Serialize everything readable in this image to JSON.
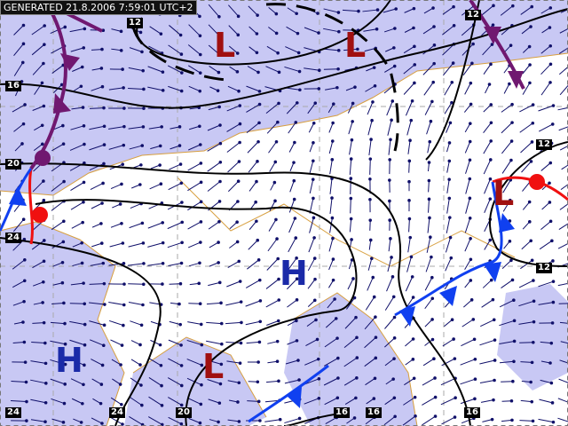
{
  "header": {
    "generated": "GENERATED 21.8.2006 7:59:01 UTC+2"
  },
  "colors": {
    "shading": "#c8c8f4",
    "low": "#a01010",
    "high": "#1a2aa8",
    "cold_front": "#1040f0",
    "warm_front": "#f01010",
    "occluded_front": "#701870",
    "wind_arrows": "#10106a",
    "coastline": "#d8a040"
  },
  "isobar_labels": [
    "12",
    "12",
    "16",
    "20",
    "24",
    "12",
    "12",
    "24",
    "24",
    "20",
    "16",
    "16",
    "16"
  ],
  "pressure_centers": [
    {
      "type": "low",
      "label": "L"
    },
    {
      "type": "low",
      "label": "L"
    },
    {
      "type": "low",
      "label": "L"
    },
    {
      "type": "high",
      "label": "H"
    },
    {
      "type": "high",
      "label": "H"
    },
    {
      "type": "low",
      "label": "L"
    }
  ]
}
